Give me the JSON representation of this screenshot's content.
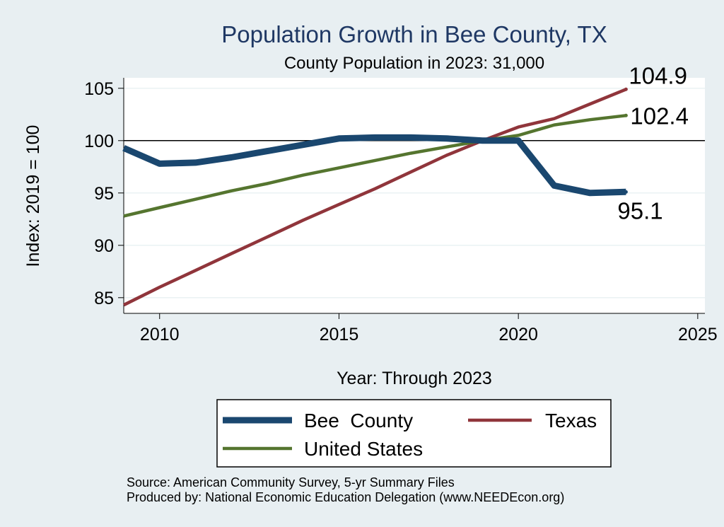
{
  "chart_data": {
    "type": "line",
    "title": "Population Growth in Bee County, TX",
    "subtitle": "County Population in 2023: 31,000",
    "xlabel": "Year: Through 2023",
    "ylabel": "Index: 2019 = 100",
    "xlim": [
      2009,
      2025.2
    ],
    "ylim": [
      83.5,
      106
    ],
    "xticks": [
      2010,
      2015,
      2020,
      2025
    ],
    "yticks": [
      85,
      90,
      95,
      100,
      105
    ],
    "reference_line": 100,
    "grid": true,
    "legend_position": "bottom",
    "x": [
      2009,
      2010,
      2011,
      2012,
      2013,
      2014,
      2015,
      2016,
      2017,
      2018,
      2019,
      2020,
      2021,
      2022,
      2023
    ],
    "series": [
      {
        "name": "Bee  County",
        "color": "#1a476f",
        "values": [
          99.3,
          97.8,
          97.9,
          98.4,
          99.0,
          99.6,
          100.2,
          100.3,
          100.3,
          100.2,
          100.0,
          100.0,
          95.7,
          95.0,
          95.1
        ],
        "end_label": "95.1"
      },
      {
        "name": "Texas",
        "color": "#90353b",
        "values": [
          84.3,
          86.0,
          87.6,
          89.2,
          90.8,
          92.4,
          93.9,
          95.4,
          97.0,
          98.6,
          100.0,
          101.3,
          102.1,
          103.5,
          104.9
        ],
        "end_label": "104.9"
      },
      {
        "name": "United States",
        "color": "#55752f",
        "values": [
          92.8,
          93.6,
          94.4,
          95.2,
          95.9,
          96.7,
          97.4,
          98.1,
          98.8,
          99.4,
          100.0,
          100.5,
          101.5,
          102.0,
          102.4
        ],
        "end_label": "102.4"
      }
    ]
  },
  "notes": {
    "source": "Source: American Community Survey, 5-yr Summary Files",
    "produced_by": "Produced by: National Economic Education Delegation (www.NEEDEcon.org)"
  }
}
